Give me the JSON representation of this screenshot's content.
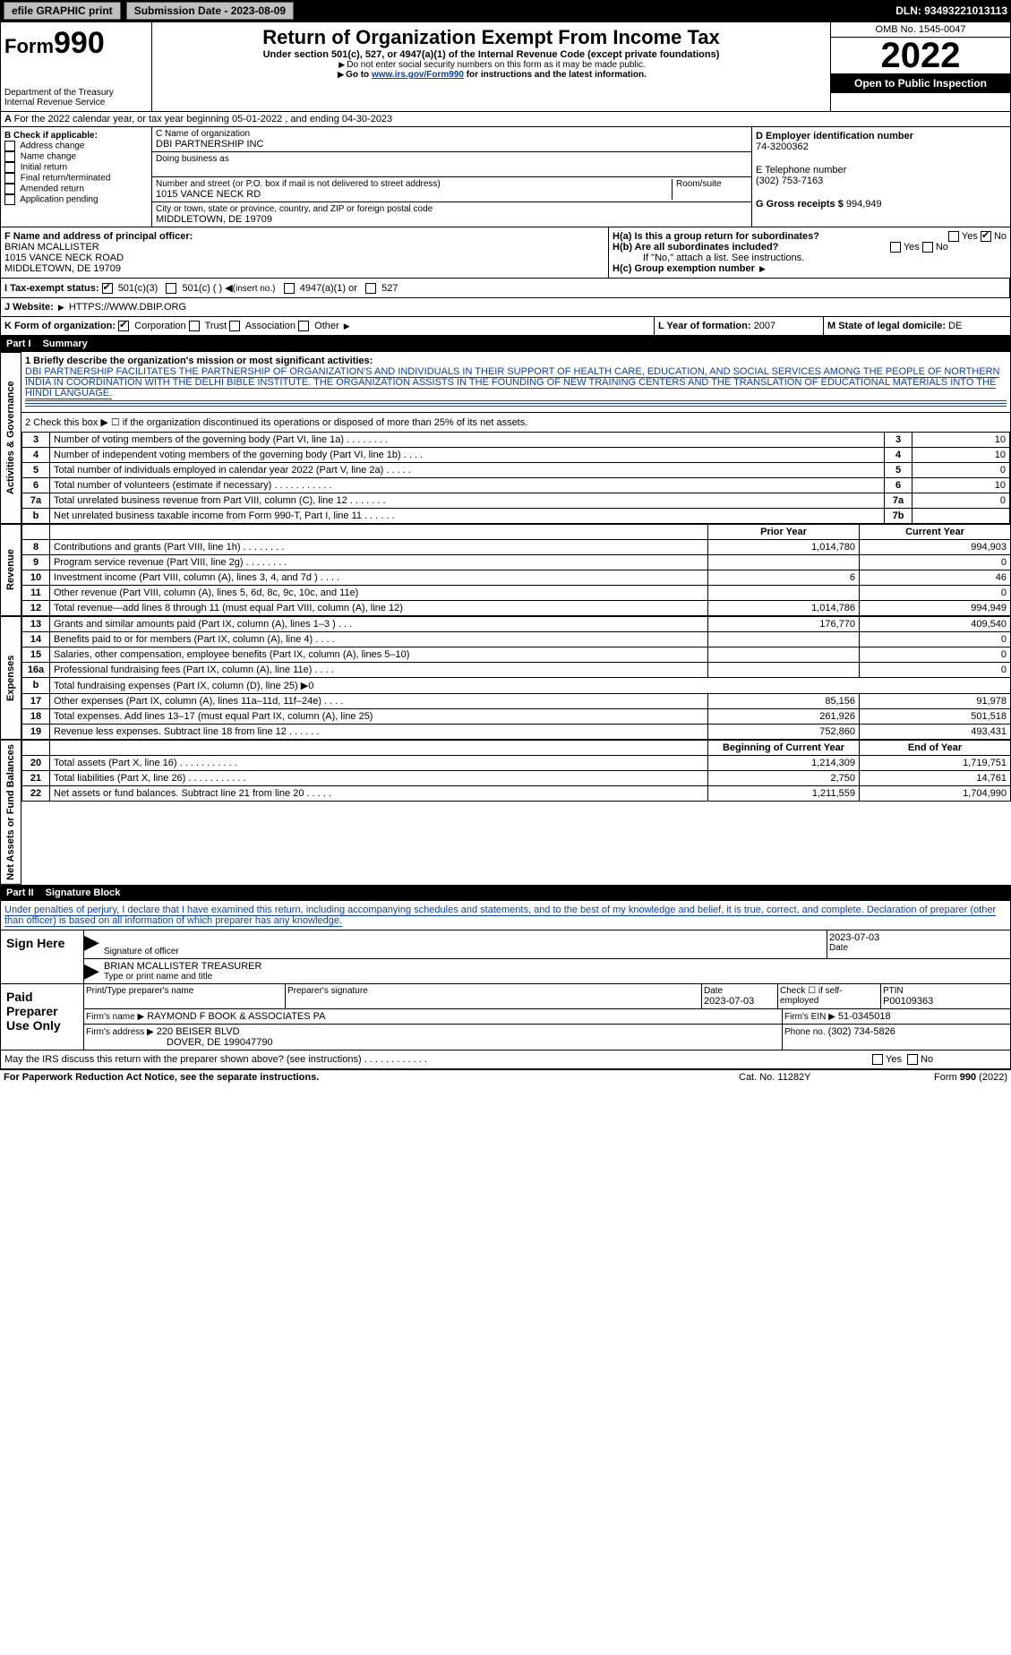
{
  "topbar": {
    "efile_label": "efile GRAPHIC print",
    "submission_label": "Submission Date - 2023-08-09",
    "dln_label": "DLN: 93493221013113"
  },
  "header": {
    "form_prefix": "Form",
    "form_number": "990",
    "title": "Return of Organization Exempt From Income Tax",
    "subtitle": "Under section 501(c), 527, or 4947(a)(1) of the Internal Revenue Code (except private foundations)",
    "note1": "Do not enter social security numbers on this form as it may be made public.",
    "note2_prefix": "Go to ",
    "note2_link": "www.irs.gov/Form990",
    "note2_suffix": " for instructions and the latest information.",
    "dept": "Department of the Treasury",
    "irs": "Internal Revenue Service",
    "omb": "OMB No. 1545-0047",
    "year": "2022",
    "open": "Open to Public Inspection"
  },
  "line_a": {
    "text": "For the 2022 calendar year, or tax year beginning 05-01-2022    , and ending 04-30-2023"
  },
  "box_b": {
    "header": "B Check if applicable:",
    "items": [
      "Address change",
      "Name change",
      "Initial return",
      "Final return/terminated",
      "Amended return",
      "Application pending"
    ]
  },
  "box_c": {
    "name_label": "C Name of organization",
    "name": "DBI PARTNERSHIP INC",
    "dba_label": "Doing business as",
    "street_label": "Number and street (or P.O. box if mail is not delivered to street address)",
    "room_label": "Room/suite",
    "street": "1015 VANCE NECK RD",
    "city_label": "City or town, state or province, country, and ZIP or foreign postal code",
    "city": "MIDDLETOWN, DE  19709"
  },
  "box_d": {
    "label": "D Employer identification number",
    "value": "74-3200362"
  },
  "box_e": {
    "label": "E Telephone number",
    "value": "(302) 753-7163"
  },
  "box_g": {
    "label": "G Gross receipts $",
    "value": "994,949"
  },
  "box_f": {
    "label": "F  Name and address of principal officer:",
    "name": "BRIAN MCALLISTER",
    "street": "1015 VANCE NECK ROAD",
    "city": "MIDDLETOWN, DE  19709"
  },
  "box_h": {
    "a_label": "H(a)  Is this a group return for subordinates?",
    "b_label": "H(b)  Are all subordinates included?",
    "note": "If \"No,\" attach a list. See instructions.",
    "c_label": "H(c)  Group exemption number",
    "yes": "Yes",
    "no": "No"
  },
  "box_i": {
    "label": "I   Tax-exempt status:",
    "opt1": "501(c)(3)",
    "opt2": "501(c) (  )",
    "insert": "(insert no.)",
    "opt3": "4947(a)(1) or",
    "opt4": "527"
  },
  "box_j": {
    "label": "J   Website:",
    "value": "HTTPS://WWW.DBIP.ORG"
  },
  "box_k": {
    "label": "K Form of organization:",
    "corp": "Corporation",
    "trust": "Trust",
    "assoc": "Association",
    "other": "Other"
  },
  "box_l": {
    "label": "L Year of formation:",
    "value": "2007"
  },
  "box_m": {
    "label": "M State of legal domicile:",
    "value": "DE"
  },
  "part1": {
    "header_num": "Part I",
    "header_title": "Summary",
    "side_ag": "Activities & Governance",
    "side_rev": "Revenue",
    "side_exp": "Expenses",
    "side_na": "Net Assets or Fund Balances",
    "line1_label": "1 Briefly describe the organization's mission or most significant activities:",
    "line1_text": "DBI PARTNERSHIP FACILITATES THE PARTNERSHIP OF ORGANIZATION'S AND INDIVIDUALS IN THEIR SUPPORT OF HEALTH CARE, EDUCATION, AND SOCIAL SERVICES AMONG THE PEOPLE OF NORTHERN INDIA IN COORDINATION WITH THE DELHI BIBLE INSTITUTE. THE ORGANIZATION ASSISTS IN THE FOUNDING OF NEW TRAINING CENTERS AND THE TRANSLATION OF EDUCATIONAL MATERIALS INTO THE HINDI LANGUAGE.",
    "line2": "2   Check this box ▶ ☐  if the organization discontinued its operations or disposed of more than 25% of its net assets.",
    "rows_ag": [
      {
        "n": "3",
        "label": "Number of voting members of the governing body (Part VI, line 1a)   .    .    .    .    .    .    .    .",
        "box": "3",
        "val": "10"
      },
      {
        "n": "4",
        "label": "Number of independent voting members of the governing body (Part VI, line 1b)    .    .    .    .",
        "box": "4",
        "val": "10"
      },
      {
        "n": "5",
        "label": "Total number of individuals employed in calendar year 2022 (Part V, line 2a)   .    .    .    .    .",
        "box": "5",
        "val": "0"
      },
      {
        "n": "6",
        "label": "Total number of volunteers (estimate if necessary)    .    .    .    .    .    .    .    .    .    .    .",
        "box": "6",
        "val": "10"
      },
      {
        "n": "7a",
        "label": "Total unrelated business revenue from Part VIII, column (C), line 12   .    .    .    .    .    .    .",
        "box": "7a",
        "val": "0"
      },
      {
        "n": "b",
        "label": "Net unrelated business taxable income from Form 990-T, Part I, line 11    .    .    .    .    .    .",
        "box": "7b",
        "val": ""
      }
    ],
    "col_prior": "Prior Year",
    "col_current": "Current Year",
    "rows_rev": [
      {
        "n": "8",
        "label": "Contributions and grants (Part VIII, line 1h)    .    .    .    .    .    .    .    .",
        "prior": "1,014,780",
        "curr": "994,903"
      },
      {
        "n": "9",
        "label": "Program service revenue (Part VIII, line 2g)    .    .    .    .    .    .    .    .",
        "prior": "",
        "curr": "0"
      },
      {
        "n": "10",
        "label": "Investment income (Part VIII, column (A), lines 3, 4, and 7d )    .    .    .    .",
        "prior": "6",
        "curr": "46"
      },
      {
        "n": "11",
        "label": "Other revenue (Part VIII, column (A), lines 5, 6d, 8c, 9c, 10c, and 11e)",
        "prior": "",
        "curr": "0"
      },
      {
        "n": "12",
        "label": "Total revenue—add lines 8 through 11 (must equal Part VIII, column (A), line 12)",
        "prior": "1,014,786",
        "curr": "994,949"
      }
    ],
    "rows_exp": [
      {
        "n": "13",
        "label": "Grants and similar amounts paid (Part IX, column (A), lines 1–3 )   .    .    .",
        "prior": "176,770",
        "curr": "409,540"
      },
      {
        "n": "14",
        "label": "Benefits paid to or for members (Part IX, column (A), line 4)   .    .    .    .",
        "prior": "",
        "curr": "0"
      },
      {
        "n": "15",
        "label": "Salaries, other compensation, employee benefits (Part IX, column (A), lines 5–10)",
        "prior": "",
        "curr": "0"
      },
      {
        "n": "16a",
        "label": "Professional fundraising fees (Part IX, column (A), line 11e)   .    .    .    .",
        "prior": "",
        "curr": "0"
      },
      {
        "n": "b",
        "label": "Total fundraising expenses (Part IX, column (D), line 25) ▶0",
        "prior": null,
        "curr": null
      },
      {
        "n": "17",
        "label": "Other expenses (Part IX, column (A), lines 11a–11d, 11f–24e)    .    .    .    .",
        "prior": "85,156",
        "curr": "91,978"
      },
      {
        "n": "18",
        "label": "Total expenses. Add lines 13–17 (must equal Part IX, column (A), line 25)",
        "prior": "261,926",
        "curr": "501,518"
      },
      {
        "n": "19",
        "label": "Revenue less expenses. Subtract line 18 from line 12  .    .    .    .    .    .",
        "prior": "752,860",
        "curr": "493,431"
      }
    ],
    "col_boy": "Beginning of Current Year",
    "col_eoy": "End of Year",
    "rows_na": [
      {
        "n": "20",
        "label": "Total assets (Part X, line 16)   .    .    .    .    .    .    .    .    .    .    .",
        "prior": "1,214,309",
        "curr": "1,719,751"
      },
      {
        "n": "21",
        "label": "Total liabilities (Part X, line 26)  .    .    .    .    .    .    .    .    .    .    .",
        "prior": "2,750",
        "curr": "14,761"
      },
      {
        "n": "22",
        "label": "Net assets or fund balances. Subtract line 21 from line 20   .    .    .    .    .",
        "prior": "1,211,559",
        "curr": "1,704,990"
      }
    ]
  },
  "part2": {
    "header_num": "Part II",
    "header_title": "Signature Block",
    "penalty": "Under penalties of perjury, I declare that I have examined this return, including accompanying schedules and statements, and to the best of my knowledge and belief, it is true, correct, and complete. Declaration of preparer (other than officer) is based on all information of which preparer has any knowledge.",
    "sign_here": "Sign Here",
    "sig_officer": "Signature of officer",
    "sig_date": "2023-07-03",
    "sig_name": "BRIAN MCALLISTER  TREASURER",
    "sig_name_label": "Type or print name and title",
    "paid_prep": "Paid Preparer Use Only",
    "prep_name_label": "Print/Type preparer's name",
    "prep_sig_label": "Preparer's signature",
    "prep_date_label": "Date",
    "prep_date": "2023-07-03",
    "check_se": "Check ☐ if self-employed",
    "ptin_label": "PTIN",
    "ptin": "P00109363",
    "firm_name_label": "Firm's name    ▶",
    "firm_name": "RAYMOND F BOOK & ASSOCIATES PA",
    "firm_ein_label": "Firm's EIN ▶",
    "firm_ein": "51-0345018",
    "firm_addr_label": "Firm's address ▶",
    "firm_addr1": "220 BEISER BLVD",
    "firm_addr2": "DOVER, DE  199047790",
    "phone_label": "Phone no.",
    "phone": "(302) 734-5826",
    "discuss": "May the IRS discuss this return with the preparer shown above? (see instructions)    .    .    .    .    .    .    .    .    .    .    .    .",
    "yes": "Yes",
    "no": "No"
  },
  "footer": {
    "left": "For Paperwork Reduction Act Notice, see the separate instructions.",
    "mid": "Cat. No. 11282Y",
    "right": "Form 990 (2022)"
  }
}
